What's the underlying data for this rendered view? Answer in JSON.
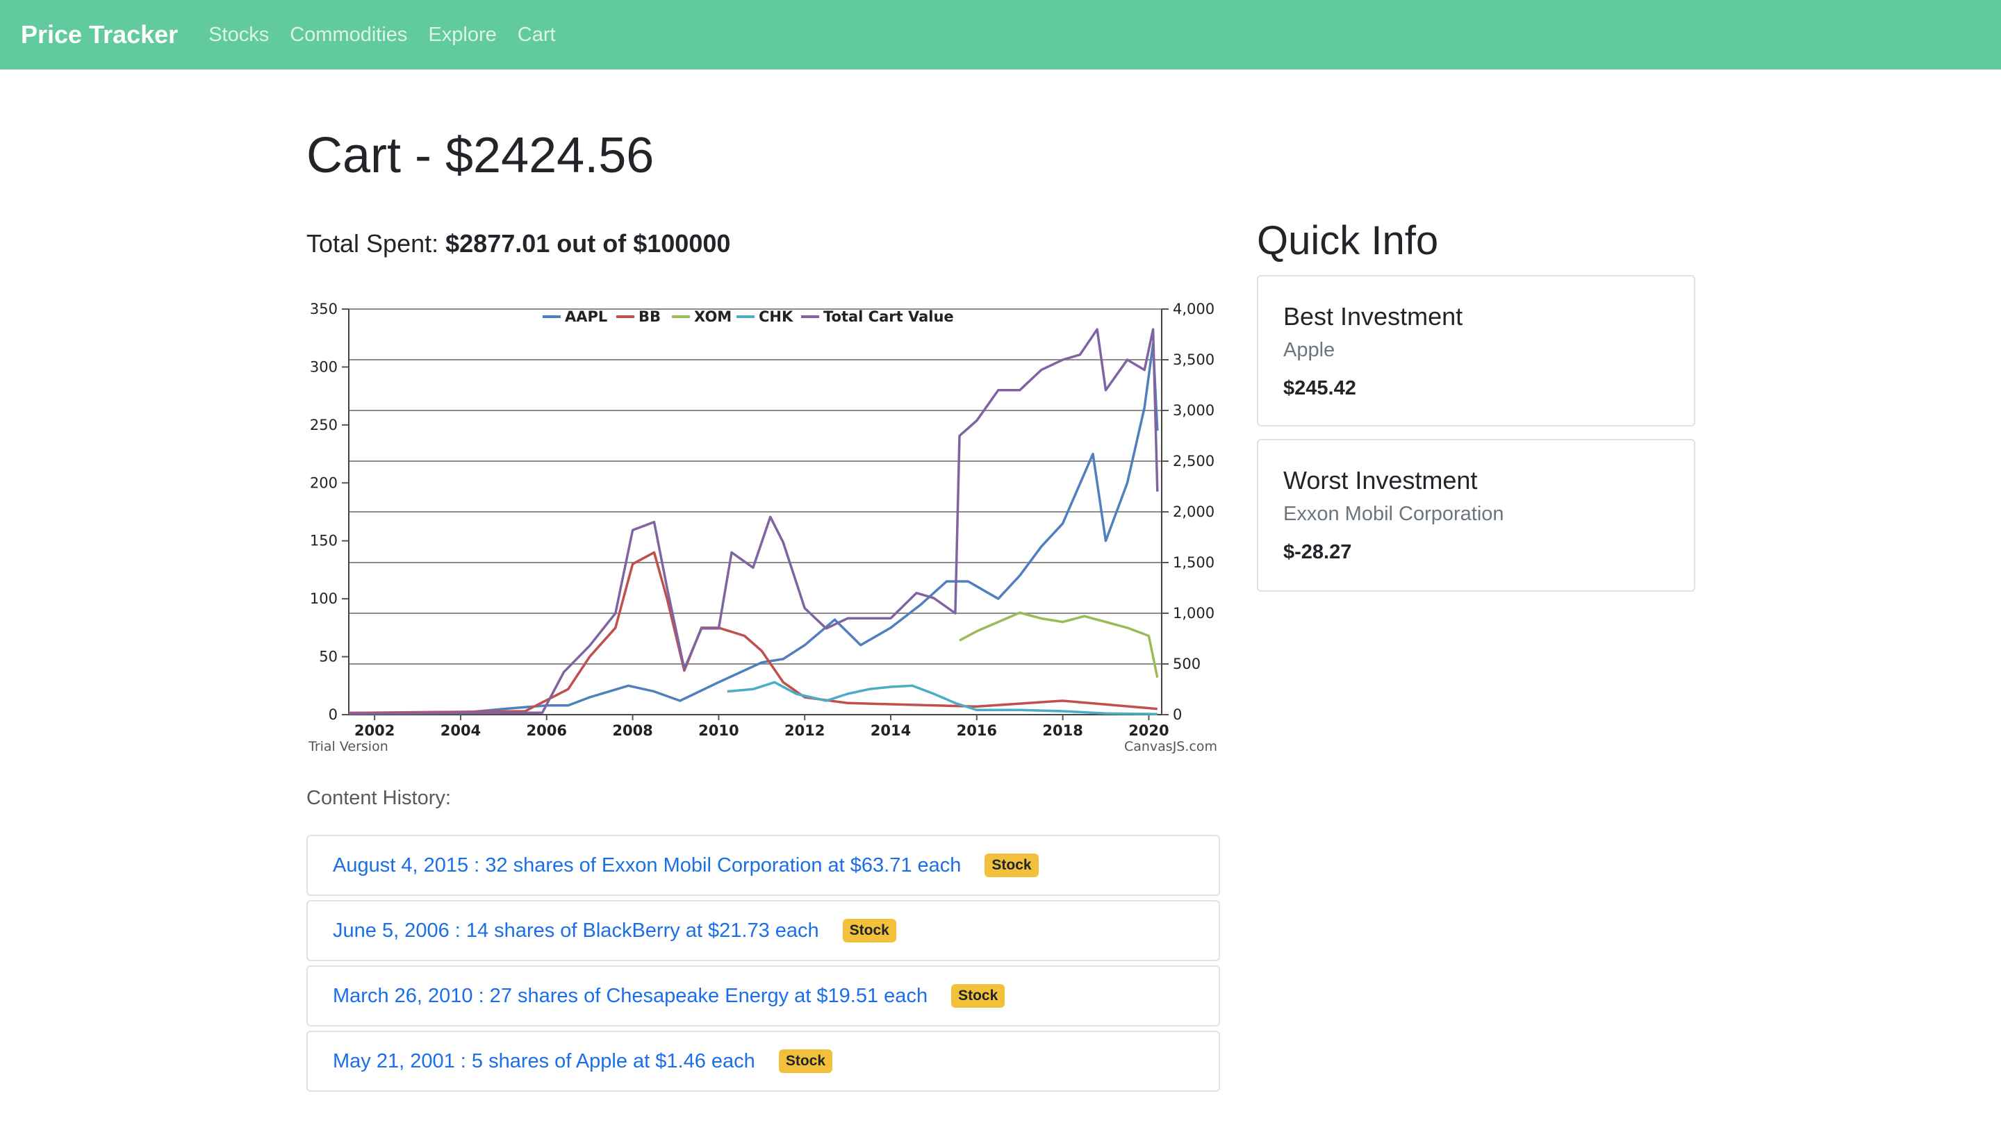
{
  "nav": {
    "brand": "Price Tracker",
    "links": [
      "Stocks",
      "Commodities",
      "Explore",
      "Cart"
    ]
  },
  "cart": {
    "title": "Cart - $2424.56",
    "total_spent_label": "Total Spent:",
    "total_spent_value": "$2877.01 out of $100000"
  },
  "chart_data": {
    "type": "line",
    "title": "",
    "left_axis": {
      "range": [
        0,
        350
      ],
      "ticks": [
        "0",
        "50",
        "100",
        "150",
        "200",
        "250",
        "300",
        "350"
      ]
    },
    "right_axis": {
      "range": [
        0,
        4000
      ],
      "ticks": [
        "0",
        "500",
        "1,000",
        "1,500",
        "2,000",
        "2,500",
        "3,000",
        "3,500",
        "4,000"
      ]
    },
    "x_range": [
      2001.4,
      2020.3
    ],
    "x_ticks": [
      "2002",
      "2004",
      "2006",
      "2008",
      "2010",
      "2012",
      "2014",
      "2016",
      "2018",
      "2020"
    ],
    "legend_position": "top-center",
    "watermark_left": "Trial Version",
    "watermark_right": "CanvasJS.com",
    "series": [
      {
        "name": "AAPL",
        "axis": "left",
        "color": "#4f80bd",
        "x": [
          2001.4,
          2004,
          2005,
          2006,
          2006.5,
          2007,
          2007.9,
          2008.5,
          2009.1,
          2010,
          2011,
          2011.5,
          2012,
          2012.7,
          2013.3,
          2014,
          2014.7,
          2015.3,
          2015.8,
          2016.5,
          2017,
          2017.5,
          2018,
          2018.7,
          2019,
          2019.5,
          2019.9,
          2020.1,
          2020.2
        ],
        "values": [
          1.5,
          1.5,
          5,
          8,
          8,
          15,
          25,
          20,
          12,
          28,
          45,
          48,
          60,
          82,
          60,
          75,
          95,
          115,
          115,
          100,
          120,
          145,
          165,
          225,
          150,
          200,
          265,
          320,
          245
        ]
      },
      {
        "name": "BB",
        "axis": "left",
        "color": "#c0504e",
        "x": [
          2001.4,
          2005.5,
          2006.5,
          2007,
          2007.6,
          2008,
          2008.5,
          2008.8,
          2009.2,
          2009.6,
          2010,
          2010.6,
          2011,
          2011.5,
          2012,
          2013,
          2014,
          2016,
          2018,
          2020.2
        ],
        "values": [
          1.5,
          3,
          22,
          50,
          75,
          130,
          140,
          100,
          38,
          75,
          75,
          68,
          55,
          28,
          15,
          10,
          9,
          7,
          12,
          5
        ]
      },
      {
        "name": "XOM",
        "axis": "left",
        "color": "#9bbb58",
        "x": [
          2015.6,
          2016,
          2016.5,
          2017,
          2017.5,
          2018,
          2018.5,
          2019,
          2019.5,
          2020,
          2020.2
        ],
        "values": [
          64,
          72,
          80,
          88,
          83,
          80,
          85,
          80,
          75,
          68,
          32
        ]
      },
      {
        "name": "CHK",
        "axis": "left",
        "color": "#4bacc6",
        "x": [
          2010.2,
          2010.8,
          2011.3,
          2011.8,
          2012.5,
          2013,
          2013.5,
          2014,
          2014.5,
          2015,
          2015.5,
          2016,
          2017,
          2018,
          2019,
          2020.2
        ],
        "values": [
          20,
          22,
          28,
          18,
          12,
          18,
          22,
          24,
          25,
          18,
          10,
          4,
          4,
          3,
          1,
          0.5
        ]
      },
      {
        "name": "Total Cart Value",
        "axis": "right",
        "color": "#8064a1",
        "x": [
          2001.4,
          2005.9,
          2006.4,
          2007,
          2007.6,
          2008,
          2008.5,
          2008.8,
          2009.2,
          2009.6,
          2010,
          2010.3,
          2010.8,
          2011.2,
          2011.5,
          2012,
          2012.5,
          2013,
          2014,
          2014.6,
          2015,
          2015.5,
          2015.6,
          2016,
          2016.5,
          2017,
          2017.5,
          2018,
          2018.4,
          2018.8,
          2019,
          2019.5,
          2019.9,
          2020.1,
          2020.2
        ],
        "values": [
          10,
          20,
          420,
          680,
          1000,
          1820,
          1900,
          1250,
          450,
          850,
          850,
          1600,
          1450,
          1950,
          1700,
          1050,
          850,
          950,
          950,
          1200,
          1150,
          1000,
          2750,
          2900,
          3200,
          3200,
          3400,
          3500,
          3550,
          3800,
          3200,
          3500,
          3400,
          3800,
          2200
        ]
      }
    ]
  },
  "history": {
    "label": "Content History:",
    "items": [
      {
        "text": "August 4, 2015 : 32 shares of Exxon Mobil Corporation at $63.71 each",
        "badge": "Stock"
      },
      {
        "text": "June 5, 2006 : 14 shares of BlackBerry at $21.73 each",
        "badge": "Stock"
      },
      {
        "text": "March 26, 2010 : 27 shares of Chesapeake Energy at $19.51 each",
        "badge": "Stock"
      },
      {
        "text": "May 21, 2001 : 5 shares of Apple at $1.46 each",
        "badge": "Stock"
      }
    ]
  },
  "quick_info": {
    "title": "Quick Info",
    "best": {
      "title": "Best Investment",
      "name": "Apple",
      "value": "$245.42"
    },
    "worst": {
      "title": "Worst Investment",
      "name": "Exxon Mobil Corporation",
      "value": "$-28.27"
    }
  }
}
